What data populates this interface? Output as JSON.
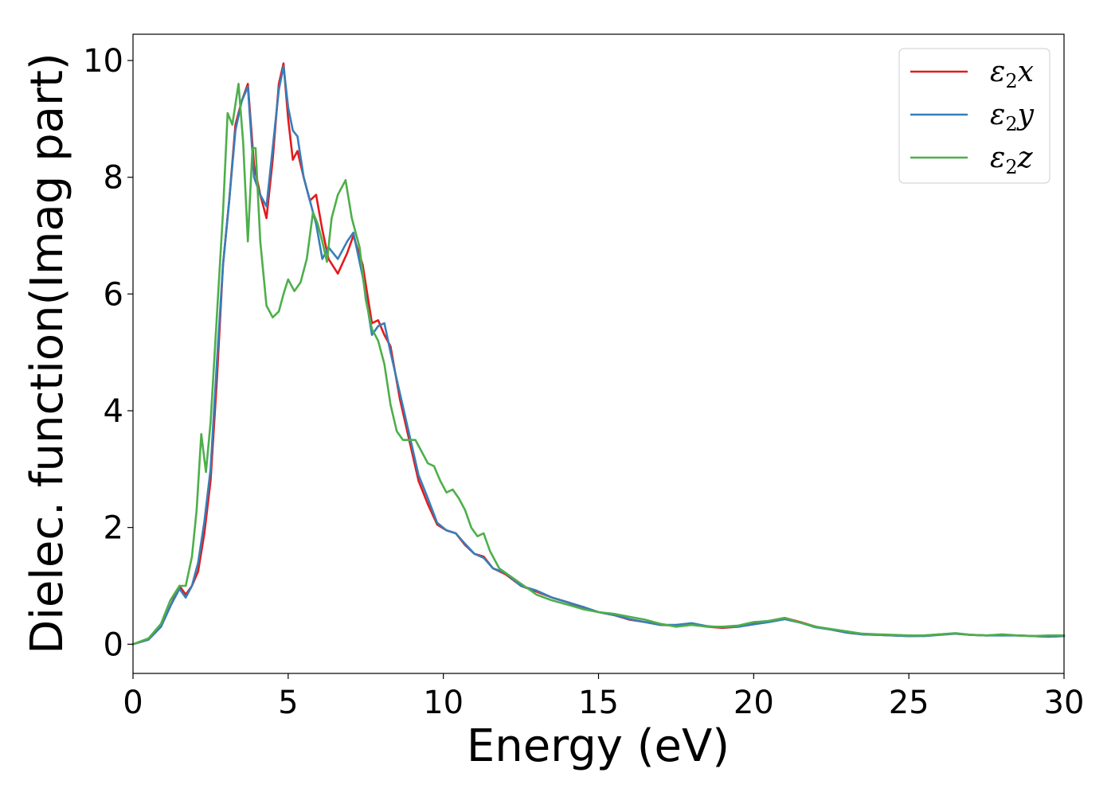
{
  "chart_data": {
    "type": "line",
    "title": "",
    "xlabel": "Energy (eV)",
    "ylabel": "Dielec. function(Imag part)",
    "xlim": [
      0,
      30
    ],
    "ylim": [
      -0.5,
      10.45
    ],
    "xticks": [
      0,
      5,
      10,
      15,
      20,
      25,
      30
    ],
    "yticks": [
      0,
      2,
      4,
      6,
      8,
      10
    ],
    "grid": false,
    "legend_position": "top-right",
    "series": [
      {
        "name": "ε2x",
        "legend_base": "ε",
        "legend_sub": "2",
        "legend_axis": "x",
        "color": "#e41a1c",
        "x": [
          0,
          0.5,
          0.9,
          1.2,
          1.5,
          1.7,
          1.9,
          2.1,
          2.3,
          2.5,
          2.7,
          2.9,
          3.1,
          3.3,
          3.5,
          3.7,
          3.9,
          4.1,
          4.3,
          4.5,
          4.7,
          4.85,
          5.0,
          5.15,
          5.3,
          5.5,
          5.7,
          5.9,
          6.1,
          6.3,
          6.6,
          6.9,
          7.1,
          7.4,
          7.7,
          7.9,
          8.1,
          8.3,
          8.6,
          8.9,
          9.2,
          9.5,
          9.8,
          10.1,
          10.4,
          10.7,
          11.0,
          11.3,
          11.6,
          12.0,
          12.5,
          13.0,
          13.5,
          14.0,
          14.5,
          15.0,
          15.5,
          16.0,
          16.5,
          17.0,
          17.5,
          18.0,
          18.5,
          19.0,
          19.5,
          20.0,
          20.5,
          21.0,
          21.5,
          22.0,
          22.5,
          23.0,
          23.5,
          24.0,
          24.5,
          25.0,
          25.5,
          26.0,
          26.5,
          27.0,
          27.5,
          28.0,
          28.5,
          29.0,
          29.5,
          30.0
        ],
        "values": [
          0.0,
          0.08,
          0.3,
          0.65,
          1.0,
          0.85,
          1.0,
          1.25,
          1.9,
          2.8,
          4.5,
          6.5,
          7.6,
          8.9,
          9.3,
          9.6,
          8.2,
          7.7,
          7.3,
          8.3,
          9.6,
          9.95,
          9.0,
          8.3,
          8.45,
          8.0,
          7.6,
          7.7,
          7.1,
          6.6,
          6.35,
          6.7,
          7.0,
          6.5,
          5.5,
          5.55,
          5.3,
          5.1,
          4.2,
          3.5,
          2.8,
          2.4,
          2.05,
          1.95,
          1.9,
          1.7,
          1.55,
          1.5,
          1.3,
          1.2,
          1.0,
          0.9,
          0.8,
          0.72,
          0.62,
          0.55,
          0.5,
          0.42,
          0.38,
          0.33,
          0.32,
          0.35,
          0.3,
          0.28,
          0.3,
          0.35,
          0.4,
          0.45,
          0.38,
          0.3,
          0.25,
          0.2,
          0.17,
          0.16,
          0.15,
          0.14,
          0.15,
          0.17,
          0.18,
          0.16,
          0.15,
          0.16,
          0.15,
          0.14,
          0.13,
          0.14
        ]
      },
      {
        "name": "ε2y",
        "legend_base": "ε",
        "legend_sub": "2",
        "legend_axis": "y",
        "color": "#377eb8",
        "x": [
          0,
          0.5,
          0.9,
          1.2,
          1.5,
          1.7,
          1.9,
          2.1,
          2.3,
          2.5,
          2.7,
          2.9,
          3.1,
          3.3,
          3.5,
          3.7,
          3.9,
          4.1,
          4.3,
          4.5,
          4.7,
          4.85,
          5.0,
          5.15,
          5.3,
          5.5,
          5.7,
          5.9,
          6.1,
          6.3,
          6.6,
          6.9,
          7.1,
          7.4,
          7.7,
          7.9,
          8.1,
          8.3,
          8.6,
          8.9,
          9.2,
          9.5,
          9.8,
          10.1,
          10.4,
          10.7,
          11.0,
          11.3,
          11.6,
          12.0,
          12.5,
          13.0,
          13.5,
          14.0,
          14.5,
          15.0,
          15.5,
          16.0,
          16.5,
          17.0,
          17.5,
          18.0,
          18.5,
          19.0,
          19.5,
          20.0,
          20.5,
          21.0,
          21.5,
          22.0,
          22.5,
          23.0,
          23.5,
          24.0,
          24.5,
          25.0,
          25.5,
          26.0,
          26.5,
          27.0,
          27.5,
          28.0,
          28.5,
          29.0,
          29.5,
          30.0
        ],
        "values": [
          0.0,
          0.08,
          0.3,
          0.65,
          0.95,
          0.8,
          1.0,
          1.4,
          2.1,
          3.0,
          4.8,
          6.5,
          7.6,
          8.8,
          9.3,
          9.55,
          8.0,
          7.7,
          7.5,
          8.5,
          9.5,
          9.9,
          9.2,
          8.8,
          8.7,
          8.0,
          7.6,
          7.2,
          6.6,
          6.8,
          6.6,
          6.9,
          7.05,
          6.3,
          5.3,
          5.45,
          5.5,
          5.0,
          4.3,
          3.6,
          2.9,
          2.5,
          2.08,
          1.95,
          1.9,
          1.72,
          1.55,
          1.48,
          1.3,
          1.22,
          1.0,
          0.92,
          0.8,
          0.72,
          0.64,
          0.55,
          0.5,
          0.43,
          0.38,
          0.33,
          0.33,
          0.36,
          0.31,
          0.29,
          0.3,
          0.34,
          0.38,
          0.43,
          0.37,
          0.29,
          0.25,
          0.2,
          0.17,
          0.16,
          0.15,
          0.14,
          0.14,
          0.16,
          0.18,
          0.16,
          0.15,
          0.15,
          0.15,
          0.14,
          0.13,
          0.14
        ]
      },
      {
        "name": "ε2z",
        "legend_base": "ε",
        "legend_sub": "2",
        "legend_axis": "z",
        "color": "#4daf4a",
        "x": [
          0,
          0.5,
          0.9,
          1.2,
          1.5,
          1.7,
          1.9,
          2.05,
          2.2,
          2.35,
          2.5,
          2.7,
          2.9,
          3.05,
          3.2,
          3.4,
          3.55,
          3.7,
          3.85,
          3.95,
          4.1,
          4.3,
          4.5,
          4.7,
          4.85,
          5.0,
          5.2,
          5.4,
          5.6,
          5.8,
          5.95,
          6.1,
          6.25,
          6.4,
          6.6,
          6.85,
          7.05,
          7.3,
          7.5,
          7.7,
          7.9,
          8.1,
          8.3,
          8.5,
          8.7,
          8.9,
          9.1,
          9.3,
          9.5,
          9.7,
          9.9,
          10.1,
          10.3,
          10.5,
          10.7,
          10.9,
          11.1,
          11.3,
          11.5,
          11.8,
          12.2,
          12.6,
          13.0,
          13.5,
          14.0,
          14.5,
          15.0,
          15.5,
          16.0,
          16.5,
          17.0,
          17.5,
          18.0,
          18.5,
          19.0,
          19.5,
          20.0,
          20.5,
          21.0,
          21.5,
          22.0,
          22.5,
          23.0,
          23.5,
          24.0,
          24.5,
          25.0,
          25.5,
          26.0,
          26.5,
          27.0,
          27.5,
          28.0,
          28.5,
          29.0,
          29.5,
          30.0
        ],
        "values": [
          0.0,
          0.1,
          0.35,
          0.75,
          1.0,
          1.0,
          1.5,
          2.3,
          3.6,
          2.95,
          3.8,
          5.6,
          7.4,
          9.1,
          8.9,
          9.6,
          8.6,
          6.9,
          8.5,
          8.5,
          6.9,
          5.8,
          5.6,
          5.7,
          6.0,
          6.25,
          6.05,
          6.2,
          6.6,
          7.4,
          7.2,
          6.9,
          6.55,
          7.3,
          7.7,
          7.95,
          7.3,
          6.8,
          5.9,
          5.4,
          5.2,
          4.8,
          4.1,
          3.65,
          3.5,
          3.5,
          3.5,
          3.3,
          3.1,
          3.05,
          2.8,
          2.6,
          2.65,
          2.5,
          2.3,
          2.0,
          1.85,
          1.9,
          1.6,
          1.3,
          1.15,
          1.0,
          0.85,
          0.75,
          0.68,
          0.6,
          0.55,
          0.52,
          0.47,
          0.42,
          0.35,
          0.3,
          0.33,
          0.3,
          0.3,
          0.32,
          0.38,
          0.4,
          0.45,
          0.37,
          0.3,
          0.26,
          0.22,
          0.18,
          0.17,
          0.16,
          0.15,
          0.15,
          0.17,
          0.19,
          0.16,
          0.15,
          0.17,
          0.15,
          0.14,
          0.15,
          0.15
        ]
      }
    ]
  }
}
